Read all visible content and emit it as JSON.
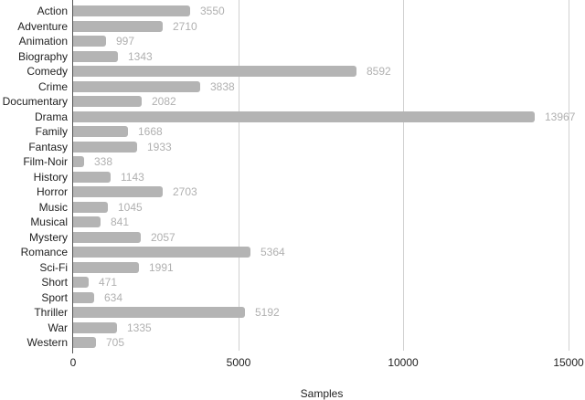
{
  "chart_data": {
    "type": "bar",
    "orientation": "horizontal",
    "title": "",
    "xlabel": "Samples",
    "ylabel": "",
    "xlim": [
      0,
      15000
    ],
    "xticks": [
      0,
      5000,
      10000,
      15000
    ],
    "xtick_labels": [
      "0",
      "5000",
      "10000",
      "15000"
    ],
    "grid": true,
    "legend": null,
    "bar_color": "#b4b4b4",
    "value_label_color": "#b0b0b0",
    "categories": [
      "Action",
      "Adventure",
      "Animation",
      "Biography",
      "Comedy",
      "Crime",
      "Documentary",
      "Drama",
      "Family",
      "Fantasy",
      "Film-Noir",
      "History",
      "Horror",
      "Music",
      "Musical",
      "Mystery",
      "Romance",
      "Sci-Fi",
      "Short",
      "Sport",
      "Thriller",
      "War",
      "Western"
    ],
    "values": [
      3550,
      2710,
      997,
      1343,
      8592,
      3838,
      2082,
      13967,
      1668,
      1933,
      338,
      1143,
      2703,
      1045,
      841,
      2057,
      5364,
      1991,
      471,
      634,
      5192,
      1335,
      705
    ],
    "value_labels": [
      "3550",
      "2710",
      "997",
      "1343",
      "8592",
      "3838",
      "2082",
      "13967",
      "1668",
      "1933",
      "338",
      "1143",
      "2703",
      "1045",
      "841",
      "2057",
      "5364",
      "1991",
      "471",
      "634",
      "5192",
      "1335",
      "705"
    ]
  }
}
